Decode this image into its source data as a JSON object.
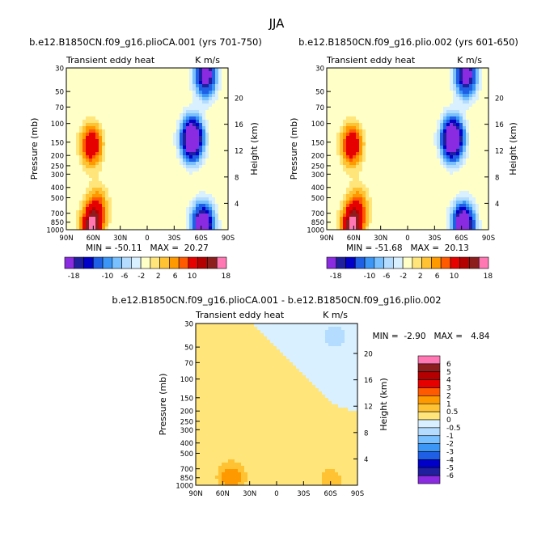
{
  "figure": {
    "main_title": "JJA"
  },
  "palettes": {
    "top": [
      "#8a2be2",
      "#1f1fa0",
      "#0000c8",
      "#1e5fe6",
      "#3c96f5",
      "#78c0ff",
      "#b4dcff",
      "#d8f0ff",
      "#ffffc8",
      "#ffe57a",
      "#ffc233",
      "#ff9900",
      "#ff5a00",
      "#e60000",
      "#b40000",
      "#8c1e1e",
      "#ff78b4"
    ],
    "diff": [
      "#8a2be2",
      "#1f1fa0",
      "#0000c8",
      "#1e5fe6",
      "#3c96f5",
      "#78c0ff",
      "#b4dcff",
      "#d8f0ff",
      "#ffffc8",
      "#ffe57a",
      "#ffc233",
      "#ff9900",
      "#ff5a00",
      "#e60000",
      "#b40000",
      "#8c1e1e",
      "#ff78b4"
    ]
  },
  "chart_data": [
    {
      "type": "heatmap",
      "title": "b.e12.B1850CN.f09_g16.plioCA.001 (yrs 701-750)",
      "left_string": "Transient eddy heat",
      "right_string": "K m/s",
      "xlabel": "",
      "ylabel": "Pressure (mb)",
      "ylabel_right": "Height (km)",
      "x_ticks": [
        "90N",
        "60N",
        "30N",
        "0",
        "30S",
        "60S",
        "90S"
      ],
      "xlim": [
        90,
        -90
      ],
      "y_ticks": [
        "30",
        "50",
        "70",
        "100",
        "150",
        "200",
        "250",
        "300",
        "400",
        "500",
        "700",
        "850",
        "1000"
      ],
      "y_tick_values": [
        30,
        50,
        70,
        100,
        150,
        200,
        250,
        300,
        400,
        500,
        700,
        850,
        1000
      ],
      "ylim": [
        1000,
        30
      ],
      "right_ticks": [
        "20",
        "16",
        "12",
        "8",
        "4"
      ],
      "right_tick_values": [
        20,
        16,
        12,
        8,
        4
      ],
      "min_max_text": "MIN = -50.11   MAX =  20.27",
      "min": -50.11,
      "max": 20.27,
      "colorbar_levels": [
        -18,
        -16,
        -14,
        -12,
        -10,
        -8,
        -6,
        -4,
        -2,
        0,
        2,
        4,
        6,
        8,
        10,
        12,
        14,
        16,
        18
      ],
      "colorbar_labels": [
        "-18",
        "-10",
        "-6",
        "-2",
        "2",
        "6",
        "10",
        "18"
      ],
      "features": [
        {
          "lat": 62,
          "p": 160,
          "value": 14
        },
        {
          "lat": 55,
          "p": 600,
          "value": 8
        },
        {
          "lat": 62,
          "p": 950,
          "value": 18
        },
        {
          "lat": -50,
          "p": 140,
          "value": -30
        },
        {
          "lat": -62,
          "p": 900,
          "value": -26
        },
        {
          "lat": -65,
          "p": 35,
          "value": -22
        },
        {
          "lat": 15,
          "p": 120,
          "value": 2
        },
        {
          "lat": -25,
          "p": 800,
          "value": -2
        }
      ]
    },
    {
      "type": "heatmap",
      "title": "b.e12.B1850CN.f09_g16.plio.002 (yrs 601-650)",
      "left_string": "Transient eddy heat",
      "right_string": "K m/s",
      "xlabel": "",
      "ylabel": "Pressure (mb)",
      "ylabel_right": "Height (km)",
      "x_ticks": [
        "90N",
        "60N",
        "30N",
        "0",
        "30S",
        "60S",
        "90S"
      ],
      "xlim": [
        90,
        -90
      ],
      "y_ticks": [
        "30",
        "50",
        "70",
        "100",
        "150",
        "200",
        "250",
        "300",
        "400",
        "500",
        "700",
        "850",
        "1000"
      ],
      "y_tick_values": [
        30,
        50,
        70,
        100,
        150,
        200,
        250,
        300,
        400,
        500,
        700,
        850,
        1000
      ],
      "ylim": [
        1000,
        30
      ],
      "right_ticks": [
        "20",
        "16",
        "12",
        "8",
        "4"
      ],
      "right_tick_values": [
        20,
        16,
        12,
        8,
        4
      ],
      "min_max_text": "MIN = -51.68   MAX =  20.13",
      "min": -51.68,
      "max": 20.13,
      "colorbar_levels": [
        -18,
        -16,
        -14,
        -12,
        -10,
        -8,
        -6,
        -4,
        -2,
        0,
        2,
        4,
        6,
        8,
        10,
        12,
        14,
        16,
        18
      ],
      "colorbar_labels": [
        "-18",
        "-10",
        "-6",
        "-2",
        "2",
        "6",
        "10",
        "18"
      ],
      "features": [
        {
          "lat": 62,
          "p": 160,
          "value": 14
        },
        {
          "lat": 55,
          "p": 600,
          "value": 8
        },
        {
          "lat": 62,
          "p": 950,
          "value": 18
        },
        {
          "lat": -50,
          "p": 140,
          "value": -30
        },
        {
          "lat": -62,
          "p": 900,
          "value": -27
        },
        {
          "lat": -65,
          "p": 35,
          "value": -22
        },
        {
          "lat": 15,
          "p": 120,
          "value": 2
        },
        {
          "lat": -25,
          "p": 800,
          "value": -2
        }
      ]
    },
    {
      "type": "heatmap",
      "title": "b.e12.B1850CN.f09_g16.plioCA.001 - b.e12.B1850CN.f09_g16.plio.002",
      "left_string": "Transient eddy heat",
      "right_string": "K m/s",
      "xlabel": "",
      "ylabel": "Pressure (mb)",
      "ylabel_right": "Height (km)",
      "x_ticks": [
        "90N",
        "60N",
        "30N",
        "0",
        "30S",
        "60S",
        "90S"
      ],
      "xlim": [
        90,
        -90
      ],
      "y_ticks": [
        "30",
        "50",
        "70",
        "100",
        "150",
        "200",
        "250",
        "300",
        "400",
        "500",
        "700",
        "850",
        "1000"
      ],
      "y_tick_values": [
        30,
        50,
        70,
        100,
        150,
        200,
        250,
        300,
        400,
        500,
        700,
        850,
        1000
      ],
      "ylim": [
        1000,
        30
      ],
      "right_ticks": [
        "20",
        "16",
        "12",
        "8",
        "4"
      ],
      "right_tick_values": [
        20,
        16,
        12,
        8,
        4
      ],
      "min_max_text": "MIN =  -2.90   MAX =   4.84",
      "min": -2.9,
      "max": 4.84,
      "colorbar_levels": [
        -6,
        -5,
        -4,
        -3,
        -2,
        -1,
        -0.5,
        0,
        0.5,
        1,
        2,
        3,
        4,
        5,
        6
      ],
      "colorbar_labels": [
        "6",
        "5",
        "4",
        "3",
        "2",
        "1",
        "0.5",
        "0",
        "-0.5",
        "-1",
        "-2",
        "-3",
        "-4",
        "-5",
        "-6"
      ],
      "features": [
        {
          "lat": 50,
          "p": 850,
          "value": 1.5
        },
        {
          "lat": -60,
          "p": 900,
          "value": 0.8
        },
        {
          "lat": -65,
          "p": 40,
          "value": -0.8
        },
        {
          "lat": 0,
          "p": 200,
          "value": 0.3
        }
      ]
    }
  ]
}
